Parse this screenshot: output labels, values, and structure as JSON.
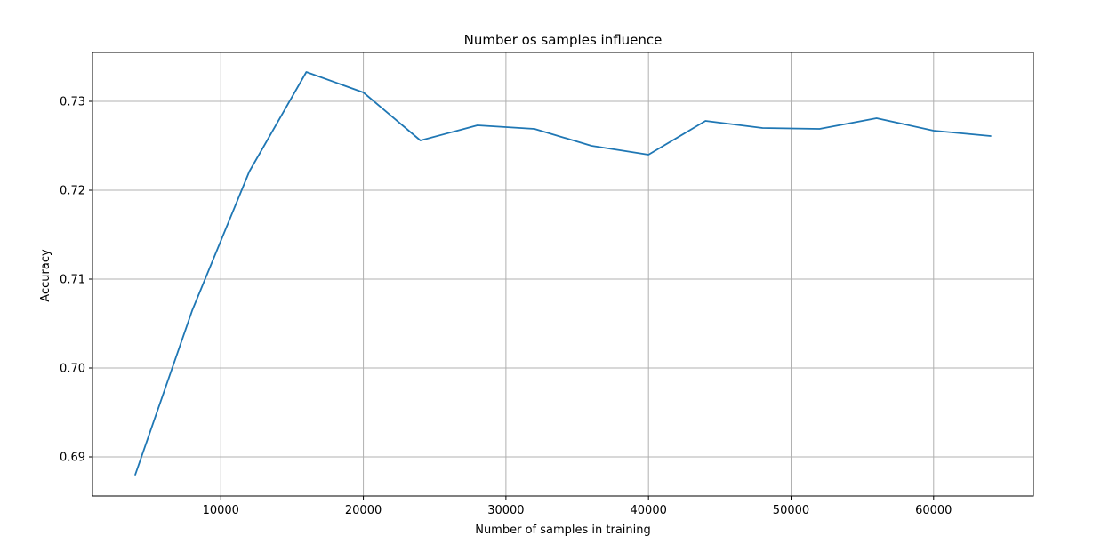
{
  "colors": {
    "series": "#1f77b4",
    "grid": "#b0b0b0"
  },
  "chart_data": {
    "type": "line",
    "title": "Number os samples influence",
    "xlabel": "Number of samples in training",
    "ylabel": "Accuracy",
    "xlim": [
      1000,
      67000
    ],
    "ylim": [
      0.6856,
      0.7355
    ],
    "xticks": [
      10000,
      20000,
      30000,
      40000,
      50000,
      60000
    ],
    "xtick_labels": [
      "10000",
      "20000",
      "30000",
      "40000",
      "50000",
      "60000"
    ],
    "yticks": [
      0.69,
      0.7,
      0.71,
      0.72,
      0.73
    ],
    "ytick_labels": [
      "0.69",
      "0.70",
      "0.71",
      "0.72",
      "0.73"
    ],
    "grid": true,
    "series": [
      {
        "x": [
          4000,
          8000,
          12000,
          16000,
          20000,
          24000,
          28000,
          32000,
          36000,
          40000,
          44000,
          48000,
          52000,
          56000,
          60000,
          64000
        ],
        "values": [
          0.688,
          0.7065,
          0.7221,
          0.7333,
          0.731,
          0.7256,
          0.7273,
          0.7269,
          0.725,
          0.724,
          0.7278,
          0.727,
          0.7269,
          0.7281,
          0.7267,
          0.7261
        ]
      }
    ]
  }
}
